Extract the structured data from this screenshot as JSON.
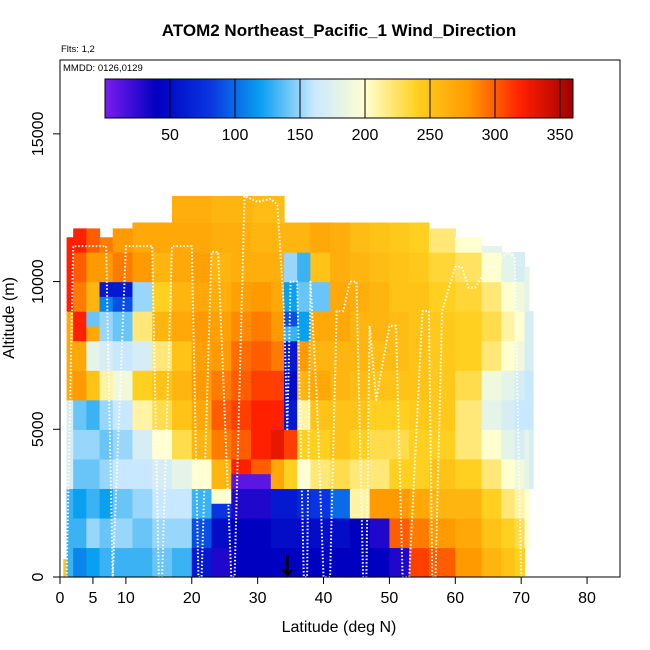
{
  "chart_data": {
    "type": "heatmap",
    "title": "ATOM2 Northeast_Pacific_1 Wind_Direction",
    "flights_label": "Flts: 1,2",
    "dates_label": "MMDD: 0126,0129",
    "xlabel": "Latitude (deg N)",
    "ylabel": "Altitude (m)",
    "xlim": [
      0,
      85
    ],
    "ylim": [
      0,
      17500
    ],
    "x_ticks": [
      0,
      5,
      10,
      20,
      30,
      40,
      50,
      60,
      70,
      80
    ],
    "y_ticks": [
      0,
      5000,
      10000,
      15000
    ],
    "colorbar": {
      "range": [
        0,
        360
      ],
      "ticks": [
        50,
        100,
        150,
        200,
        250,
        300,
        350
      ],
      "divisions": [
        50,
        100,
        150,
        200,
        250,
        300,
        350
      ],
      "colors": [
        "#7a1df0",
        "#0000c0",
        "#0a34e0",
        "#0aa0f0",
        "#c8e8ff",
        "#ffffd0",
        "#ffd020",
        "#ff9a00",
        "#ff2000",
        "#a00000"
      ]
    },
    "marker": {
      "x": 34.5,
      "label": "↓"
    },
    "grid": false,
    "legend": "none",
    "heatmap_columns": [
      {
        "x0": 0.5,
        "x1": 1.0,
        "alts": [
          0,
          600
        ],
        "dirs": [
          250
        ]
      },
      {
        "x0": 1.0,
        "x1": 2.0,
        "alts": [
          0,
          3000,
          6000,
          9000,
          11500
        ],
        "dirs": [
          130,
          170,
          270,
          320
        ]
      },
      {
        "x0": 2.0,
        "x1": 4.0,
        "alts": [
          0,
          1000,
          2000,
          3000,
          4000,
          5000,
          6000,
          7000,
          8000,
          9000,
          10000,
          11000,
          11800
        ],
        "dirs": [
          110,
          130,
          120,
          140,
          150,
          140,
          280,
          270,
          320,
          290,
          300,
          320
        ]
      },
      {
        "x0": 4.0,
        "x1": 6.0,
        "alts": [
          0,
          1000,
          2000,
          3000,
          4000,
          5000,
          6000,
          7000,
          8000,
          8500,
          9000,
          10000,
          11000,
          11800
        ],
        "dirs": [
          120,
          150,
          130,
          140,
          150,
          130,
          250,
          180,
          270,
          140,
          260,
          280,
          300
        ]
      },
      {
        "x0": 6.0,
        "x1": 8.0,
        "alts": [
          0,
          1000,
          2000,
          3000,
          4000,
          5000,
          6000,
          7000,
          8000,
          9000,
          9500,
          10000,
          11000,
          11500
        ],
        "dirs": [
          130,
          140,
          120,
          150,
          140,
          150,
          210,
          170,
          150,
          110,
          60,
          280,
          290
        ]
      },
      {
        "x0": 8.0,
        "x1": 11.0,
        "alts": [
          0,
          1000,
          2000,
          3000,
          4000,
          5000,
          6000,
          7000,
          8000,
          9000,
          9500,
          10000,
          11000,
          11800
        ],
        "dirs": [
          130,
          150,
          140,
          160,
          150,
          160,
          190,
          160,
          140,
          90,
          60,
          290,
          280
        ]
      },
      {
        "x0": 11.0,
        "x1": 14.0,
        "alts": [
          0,
          1000,
          2000,
          3000,
          4000,
          5000,
          6000,
          7000,
          8000,
          9000,
          10000,
          11000,
          12000
        ],
        "dirs": [
          130,
          140,
          150,
          160,
          170,
          210,
          240,
          170,
          220,
          150,
          280,
          270
        ]
      },
      {
        "x0": 14.0,
        "x1": 17.0,
        "alts": [
          0,
          1000,
          2000,
          3000,
          4000,
          5000,
          6000,
          7000,
          8000,
          9000,
          10000,
          11000,
          12000
        ],
        "dirs": [
          140,
          150,
          160,
          170,
          200,
          230,
          250,
          220,
          260,
          240,
          260,
          270
        ]
      },
      {
        "x0": 17.0,
        "x1": 20.0,
        "alts": [
          0,
          1000,
          2000,
          3000,
          4000,
          5000,
          6000,
          7000,
          8000,
          9000,
          10000,
          11000,
          12000,
          12900
        ],
        "dirs": [
          130,
          150,
          160,
          180,
          230,
          250,
          260,
          250,
          270,
          260,
          270,
          270,
          265
        ]
      },
      {
        "x0": 20.0,
        "x1": 23.0,
        "alts": [
          0,
          1000,
          2000,
          3000,
          4000,
          5000,
          6000,
          7000,
          8000,
          9000,
          10000,
          11000,
          12000,
          12900
        ],
        "dirs": [
          60,
          90,
          130,
          200,
          260,
          270,
          280,
          275,
          280,
          270,
          275,
          270,
          265
        ]
      },
      {
        "x0": 23.0,
        "x1": 26.0,
        "alts": [
          0,
          1000,
          2000,
          2500,
          3000,
          4000,
          5000,
          6000,
          7000,
          8000,
          9000,
          10000,
          11000,
          12000,
          12900
        ],
        "dirs": [
          30,
          50,
          80,
          200,
          260,
          290,
          300,
          290,
          280,
          275,
          265,
          260,
          265,
          260
        ]
      },
      {
        "x0": 26.0,
        "x1": 29.0,
        "alts": [
          0,
          1000,
          2000,
          3000,
          3500,
          4000,
          5000,
          6000,
          7000,
          8000,
          9000,
          10000,
          11000,
          12000,
          12900
        ],
        "dirs": [
          40,
          40,
          30,
          10,
          320,
          300,
          310,
          300,
          295,
          285,
          275,
          265,
          265,
          260
        ]
      },
      {
        "x0": 29.0,
        "x1": 32.0,
        "alts": [
          0,
          1000,
          2000,
          3000,
          3500,
          4000,
          5000,
          6000,
          7000,
          8000,
          9000,
          10000,
          11000,
          12000,
          12900
        ],
        "dirs": [
          40,
          40,
          30,
          10,
          300,
          320,
          320,
          310,
          300,
          290,
          280,
          265,
          260,
          255
        ]
      },
      {
        "x0": 32.0,
        "x1": 34.0,
        "alts": [
          0,
          1000,
          2000,
          3000,
          4000,
          5000,
          6000,
          7000,
          8000,
          9000,
          10000,
          11000,
          12000,
          12900
        ],
        "dirs": [
          40,
          50,
          60,
          270,
          330,
          320,
          310,
          290,
          280,
          270,
          265,
          260,
          255
        ]
      },
      {
        "x0": 34.0,
        "x1": 36.0,
        "alts": [
          0,
          1000,
          2000,
          3000,
          4000,
          5000,
          6000,
          7000,
          8000,
          8500,
          9000,
          10000,
          11000,
          12000
        ],
        "dirs": [
          40,
          50,
          60,
          240,
          310,
          60,
          50,
          60,
          130,
          90,
          120,
          150,
          260
        ]
      },
      {
        "x0": 36.0,
        "x1": 38.0,
        "alts": [
          0,
          1000,
          2000,
          3000,
          4000,
          5000,
          6000,
          7000,
          8000,
          9000,
          10000,
          11000,
          12000
        ],
        "dirs": [
          40,
          50,
          70,
          200,
          240,
          210,
          260,
          280,
          120,
          140,
          130,
          260
        ]
      },
      {
        "x0": 38.0,
        "x1": 41.0,
        "alts": [
          0,
          1000,
          2000,
          3000,
          4000,
          5000,
          6000,
          7000,
          8000,
          9000,
          10000,
          11000,
          12000
        ],
        "dirs": [
          40,
          50,
          80,
          220,
          240,
          250,
          270,
          260,
          270,
          140,
          250,
          270
        ]
      },
      {
        "x0": 41.0,
        "x1": 44.0,
        "alts": [
          0,
          1000,
          2000,
          3000,
          4000,
          5000,
          6000,
          7000,
          8000,
          9000,
          10000,
          11000,
          12000
        ],
        "dirs": [
          40,
          50,
          100,
          230,
          250,
          250,
          260,
          260,
          270,
          270,
          265,
          265
        ]
      },
      {
        "x0": 44.0,
        "x1": 47.0,
        "alts": [
          0,
          1000,
          2000,
          3000,
          4000,
          5000,
          6000,
          7000,
          8000,
          9000,
          10000,
          11000,
          12000
        ],
        "dirs": [
          40,
          40,
          210,
          220,
          240,
          250,
          255,
          260,
          260,
          265,
          260,
          255
        ]
      },
      {
        "x0": 47.0,
        "x1": 50.0,
        "alts": [
          0,
          1000,
          2000,
          3000,
          4000,
          5000,
          6000,
          7000,
          8000,
          9000,
          10000,
          11000,
          12000
        ],
        "dirs": [
          40,
          30,
          280,
          220,
          230,
          240,
          250,
          255,
          260,
          260,
          255,
          250
        ]
      },
      {
        "x0": 50.0,
        "x1": 53.0,
        "alts": [
          0,
          1000,
          2000,
          3000,
          4000,
          5000,
          6000,
          7000,
          8000,
          9000,
          10000,
          11000,
          12000
        ],
        "dirs": [
          30,
          300,
          280,
          240,
          230,
          240,
          250,
          255,
          255,
          250,
          250,
          245
        ]
      },
      {
        "x0": 53.0,
        "x1": 56.0,
        "alts": [
          0,
          1000,
          2000,
          3000,
          4000,
          5000,
          6000,
          7000,
          8000,
          9000,
          10000,
          11000,
          12000
        ],
        "dirs": [
          310,
          290,
          270,
          240,
          240,
          245,
          250,
          250,
          250,
          250,
          245,
          240
        ]
      },
      {
        "x0": 56.0,
        "x1": 60.0,
        "alts": [
          0,
          1000,
          2000,
          3000,
          4000,
          5000,
          6000,
          7000,
          8000,
          9000,
          10000,
          11000,
          11800
        ],
        "dirs": [
          300,
          280,
          260,
          250,
          240,
          245,
          245,
          245,
          245,
          240,
          235,
          220
        ]
      },
      {
        "x0": 60.0,
        "x1": 64.0,
        "alts": [
          0,
          1000,
          2000,
          3000,
          4000,
          5000,
          6000,
          7000,
          8000,
          9000,
          10000,
          11000,
          11500
        ],
        "dirs": [
          280,
          270,
          260,
          240,
          220,
          220,
          230,
          240,
          240,
          235,
          225,
          200
        ]
      },
      {
        "x0": 64.0,
        "x1": 67.0,
        "alts": [
          0,
          1000,
          2000,
          3000,
          4000,
          5000,
          6000,
          7000,
          8000,
          9000,
          10000,
          11000,
          11200
        ],
        "dirs": [
          260,
          250,
          240,
          220,
          200,
          180,
          190,
          220,
          230,
          220,
          200,
          180
        ]
      },
      {
        "x0": 67.0,
        "x1": 69.0,
        "alts": [
          0,
          1000,
          2000,
          3000,
          4000,
          5000,
          6000,
          7000,
          8000,
          9000,
          10000,
          11000
        ],
        "dirs": [
          250,
          240,
          220,
          200,
          180,
          170,
          180,
          200,
          210,
          200,
          180
        ]
      },
      {
        "x0": 69.0,
        "x1": 70.5,
        "alts": [
          0,
          1000,
          2000,
          3000,
          4000,
          5000,
          6000,
          7000,
          8000,
          9000,
          10000,
          11000
        ],
        "dirs": [
          240,
          230,
          210,
          190,
          170,
          160,
          170,
          190,
          200,
          190,
          170
        ]
      },
      {
        "x0": 70.5,
        "x1": 71.2,
        "alts": [
          1000,
          3000,
          5000,
          7000,
          9000,
          10500
        ],
        "dirs": [
          200,
          180,
          160,
          170,
          180
        ]
      },
      {
        "x0": 71.2,
        "x1": 71.8,
        "alts": [
          3000,
          5000,
          7000,
          9000
        ],
        "dirs": [
          170,
          160,
          170
        ]
      }
    ],
    "flight_track": {
      "lat": [
        1,
        2,
        4,
        6,
        7,
        8,
        10,
        12,
        14,
        15,
        15.5,
        17,
        20,
        21,
        21.5,
        23,
        24,
        26,
        26.5,
        28,
        30,
        32,
        33,
        34,
        34.5,
        35,
        36,
        37,
        37.5,
        38,
        39,
        40,
        41,
        42,
        43,
        44,
        45,
        46,
        46.5,
        47,
        48,
        50,
        51,
        52,
        53,
        55,
        56,
        56.5,
        57,
        58,
        60,
        61,
        62,
        63,
        65,
        66,
        67,
        68,
        69,
        70,
        70.5
      ],
      "alt": [
        0,
        11200,
        11200,
        11200,
        11200,
        0,
        11200,
        11200,
        11200,
        0,
        0,
        11200,
        11200,
        0,
        0,
        11000,
        11000,
        0,
        0,
        12900,
        12700,
        12800,
        12600,
        9000,
        5000,
        10000,
        10000,
        0,
        0,
        10000,
        6000,
        0,
        0,
        9000,
        9000,
        10000,
        10000,
        0,
        0,
        8500,
        6000,
        8500,
        8500,
        0,
        0,
        9000,
        9000,
        0,
        0,
        9000,
        10500,
        10500,
        9800,
        9800,
        10500,
        10500,
        10800,
        11000,
        10800,
        0,
        0
      ]
    }
  }
}
